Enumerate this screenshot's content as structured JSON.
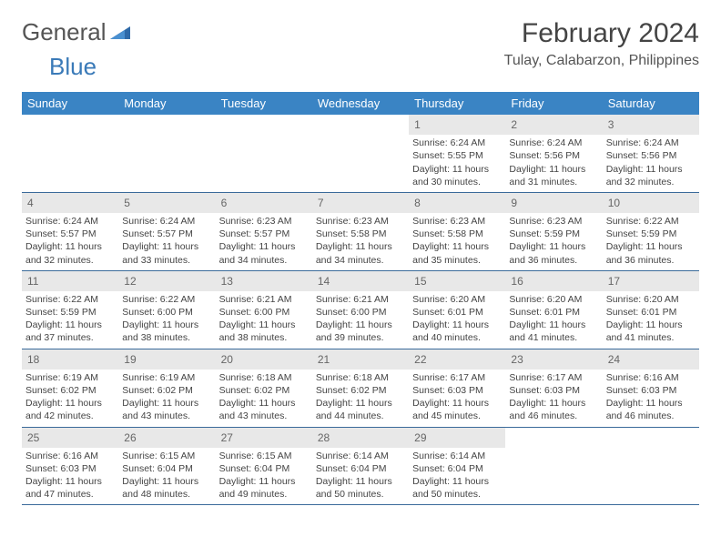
{
  "brand": {
    "word1": "General",
    "word2": "Blue"
  },
  "title": "February 2024",
  "location": "Tulay, Calabarzon, Philippines",
  "colors": {
    "header_bg": "#3a84c4",
    "header_text": "#ffffff",
    "daynum_bg": "#e8e8e8",
    "week_border": "#3a6a9a",
    "brand_blue": "#3a7ab8",
    "brand_dark": "#555555",
    "text": "#444444"
  },
  "weekdays": [
    "Sunday",
    "Monday",
    "Tuesday",
    "Wednesday",
    "Thursday",
    "Friday",
    "Saturday"
  ],
  "weeks": [
    [
      {
        "n": "",
        "sr": "",
        "ss": "",
        "d1": "",
        "d2": ""
      },
      {
        "n": "",
        "sr": "",
        "ss": "",
        "d1": "",
        "d2": ""
      },
      {
        "n": "",
        "sr": "",
        "ss": "",
        "d1": "",
        "d2": ""
      },
      {
        "n": "",
        "sr": "",
        "ss": "",
        "d1": "",
        "d2": ""
      },
      {
        "n": "1",
        "sr": "Sunrise: 6:24 AM",
        "ss": "Sunset: 5:55 PM",
        "d1": "Daylight: 11 hours",
        "d2": "and 30 minutes."
      },
      {
        "n": "2",
        "sr": "Sunrise: 6:24 AM",
        "ss": "Sunset: 5:56 PM",
        "d1": "Daylight: 11 hours",
        "d2": "and 31 minutes."
      },
      {
        "n": "3",
        "sr": "Sunrise: 6:24 AM",
        "ss": "Sunset: 5:56 PM",
        "d1": "Daylight: 11 hours",
        "d2": "and 32 minutes."
      }
    ],
    [
      {
        "n": "4",
        "sr": "Sunrise: 6:24 AM",
        "ss": "Sunset: 5:57 PM",
        "d1": "Daylight: 11 hours",
        "d2": "and 32 minutes."
      },
      {
        "n": "5",
        "sr": "Sunrise: 6:24 AM",
        "ss": "Sunset: 5:57 PM",
        "d1": "Daylight: 11 hours",
        "d2": "and 33 minutes."
      },
      {
        "n": "6",
        "sr": "Sunrise: 6:23 AM",
        "ss": "Sunset: 5:57 PM",
        "d1": "Daylight: 11 hours",
        "d2": "and 34 minutes."
      },
      {
        "n": "7",
        "sr": "Sunrise: 6:23 AM",
        "ss": "Sunset: 5:58 PM",
        "d1": "Daylight: 11 hours",
        "d2": "and 34 minutes."
      },
      {
        "n": "8",
        "sr": "Sunrise: 6:23 AM",
        "ss": "Sunset: 5:58 PM",
        "d1": "Daylight: 11 hours",
        "d2": "and 35 minutes."
      },
      {
        "n": "9",
        "sr": "Sunrise: 6:23 AM",
        "ss": "Sunset: 5:59 PM",
        "d1": "Daylight: 11 hours",
        "d2": "and 36 minutes."
      },
      {
        "n": "10",
        "sr": "Sunrise: 6:22 AM",
        "ss": "Sunset: 5:59 PM",
        "d1": "Daylight: 11 hours",
        "d2": "and 36 minutes."
      }
    ],
    [
      {
        "n": "11",
        "sr": "Sunrise: 6:22 AM",
        "ss": "Sunset: 5:59 PM",
        "d1": "Daylight: 11 hours",
        "d2": "and 37 minutes."
      },
      {
        "n": "12",
        "sr": "Sunrise: 6:22 AM",
        "ss": "Sunset: 6:00 PM",
        "d1": "Daylight: 11 hours",
        "d2": "and 38 minutes."
      },
      {
        "n": "13",
        "sr": "Sunrise: 6:21 AM",
        "ss": "Sunset: 6:00 PM",
        "d1": "Daylight: 11 hours",
        "d2": "and 38 minutes."
      },
      {
        "n": "14",
        "sr": "Sunrise: 6:21 AM",
        "ss": "Sunset: 6:00 PM",
        "d1": "Daylight: 11 hours",
        "d2": "and 39 minutes."
      },
      {
        "n": "15",
        "sr": "Sunrise: 6:20 AM",
        "ss": "Sunset: 6:01 PM",
        "d1": "Daylight: 11 hours",
        "d2": "and 40 minutes."
      },
      {
        "n": "16",
        "sr": "Sunrise: 6:20 AM",
        "ss": "Sunset: 6:01 PM",
        "d1": "Daylight: 11 hours",
        "d2": "and 41 minutes."
      },
      {
        "n": "17",
        "sr": "Sunrise: 6:20 AM",
        "ss": "Sunset: 6:01 PM",
        "d1": "Daylight: 11 hours",
        "d2": "and 41 minutes."
      }
    ],
    [
      {
        "n": "18",
        "sr": "Sunrise: 6:19 AM",
        "ss": "Sunset: 6:02 PM",
        "d1": "Daylight: 11 hours",
        "d2": "and 42 minutes."
      },
      {
        "n": "19",
        "sr": "Sunrise: 6:19 AM",
        "ss": "Sunset: 6:02 PM",
        "d1": "Daylight: 11 hours",
        "d2": "and 43 minutes."
      },
      {
        "n": "20",
        "sr": "Sunrise: 6:18 AM",
        "ss": "Sunset: 6:02 PM",
        "d1": "Daylight: 11 hours",
        "d2": "and 43 minutes."
      },
      {
        "n": "21",
        "sr": "Sunrise: 6:18 AM",
        "ss": "Sunset: 6:02 PM",
        "d1": "Daylight: 11 hours",
        "d2": "and 44 minutes."
      },
      {
        "n": "22",
        "sr": "Sunrise: 6:17 AM",
        "ss": "Sunset: 6:03 PM",
        "d1": "Daylight: 11 hours",
        "d2": "and 45 minutes."
      },
      {
        "n": "23",
        "sr": "Sunrise: 6:17 AM",
        "ss": "Sunset: 6:03 PM",
        "d1": "Daylight: 11 hours",
        "d2": "and 46 minutes."
      },
      {
        "n": "24",
        "sr": "Sunrise: 6:16 AM",
        "ss": "Sunset: 6:03 PM",
        "d1": "Daylight: 11 hours",
        "d2": "and 46 minutes."
      }
    ],
    [
      {
        "n": "25",
        "sr": "Sunrise: 6:16 AM",
        "ss": "Sunset: 6:03 PM",
        "d1": "Daylight: 11 hours",
        "d2": "and 47 minutes."
      },
      {
        "n": "26",
        "sr": "Sunrise: 6:15 AM",
        "ss": "Sunset: 6:04 PM",
        "d1": "Daylight: 11 hours",
        "d2": "and 48 minutes."
      },
      {
        "n": "27",
        "sr": "Sunrise: 6:15 AM",
        "ss": "Sunset: 6:04 PM",
        "d1": "Daylight: 11 hours",
        "d2": "and 49 minutes."
      },
      {
        "n": "28",
        "sr": "Sunrise: 6:14 AM",
        "ss": "Sunset: 6:04 PM",
        "d1": "Daylight: 11 hours",
        "d2": "and 50 minutes."
      },
      {
        "n": "29",
        "sr": "Sunrise: 6:14 AM",
        "ss": "Sunset: 6:04 PM",
        "d1": "Daylight: 11 hours",
        "d2": "and 50 minutes."
      },
      {
        "n": "",
        "sr": "",
        "ss": "",
        "d1": "",
        "d2": ""
      },
      {
        "n": "",
        "sr": "",
        "ss": "",
        "d1": "",
        "d2": ""
      }
    ]
  ]
}
